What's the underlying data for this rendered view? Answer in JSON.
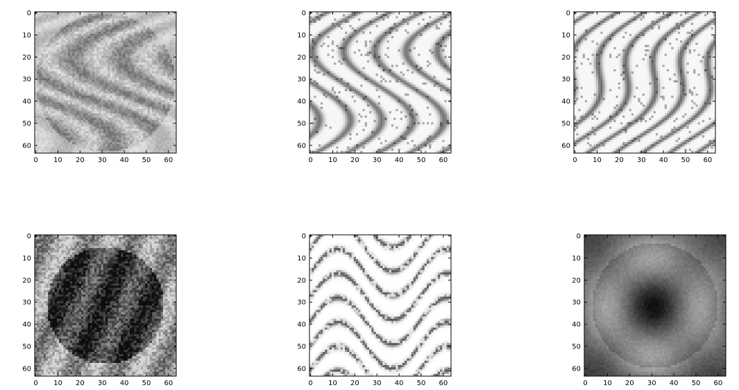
{
  "chart_data": [
    {
      "type": "heatmap",
      "colormap": "gray",
      "xlim": [
        -0.5,
        63.5
      ],
      "ylim": [
        63.5,
        -0.5
      ],
      "xticks": [
        "0",
        "10",
        "20",
        "30",
        "40",
        "50",
        "60"
      ],
      "yticks": [
        "0",
        "10",
        "20",
        "30",
        "40",
        "50",
        "60"
      ],
      "texture": "diffuse-swirl",
      "darkness": 0.35,
      "background_level": 0.9
    },
    {
      "type": "heatmap",
      "colormap": "gray",
      "xlim": [
        -0.5,
        63.5
      ],
      "ylim": [
        63.5,
        -0.5
      ],
      "xticks": [
        "0",
        "10",
        "20",
        "30",
        "40",
        "50",
        "60"
      ],
      "yticks": [
        "0",
        "10",
        "20",
        "30",
        "40",
        "50",
        "60"
      ],
      "texture": "vertical-streaks",
      "darkness": 0.45,
      "background_level": 0.97
    },
    {
      "type": "heatmap",
      "colormap": "gray",
      "xlim": [
        -0.5,
        63.5
      ],
      "ylim": [
        63.5,
        -0.5
      ],
      "xticks": [
        "0",
        "10",
        "20",
        "30",
        "40",
        "50",
        "60"
      ],
      "yticks": [
        "0",
        "10",
        "20",
        "30",
        "40",
        "50",
        "60"
      ],
      "texture": "diagonal-streaks",
      "darkness": 0.45,
      "background_level": 0.97
    },
    {
      "type": "heatmap",
      "colormap": "gray",
      "xlim": [
        -0.5,
        63.5
      ],
      "ylim": [
        63.5,
        -0.5
      ],
      "xticks": [
        "0",
        "10",
        "20",
        "30",
        "40",
        "50",
        "60"
      ],
      "yticks": [
        "0",
        "10",
        "20",
        "30",
        "40",
        "50",
        "60"
      ],
      "texture": "dense-blob",
      "darkness": 0.6,
      "background_level": 0.85
    },
    {
      "type": "heatmap",
      "colormap": "gray",
      "xlim": [
        -0.5,
        63.5
      ],
      "ylim": [
        63.5,
        -0.5
      ],
      "xticks": [
        "0",
        "10",
        "20",
        "30",
        "40",
        "50",
        "60"
      ],
      "yticks": [
        "0",
        "10",
        "20",
        "30",
        "40",
        "50",
        "60"
      ],
      "texture": "horizontal-dashes",
      "darkness": 0.45,
      "background_level": 0.98
    },
    {
      "type": "heatmap",
      "colormap": "gray",
      "xlim": [
        -0.5,
        63.5
      ],
      "ylim": [
        63.5,
        -0.5
      ],
      "xticks": [
        "0",
        "10",
        "20",
        "30",
        "40",
        "50",
        "60"
      ],
      "yticks": [
        "0",
        "10",
        "20",
        "30",
        "40",
        "50",
        "60"
      ],
      "texture": "smooth-face",
      "darkness": 0.55,
      "background_level": 0.72
    }
  ]
}
